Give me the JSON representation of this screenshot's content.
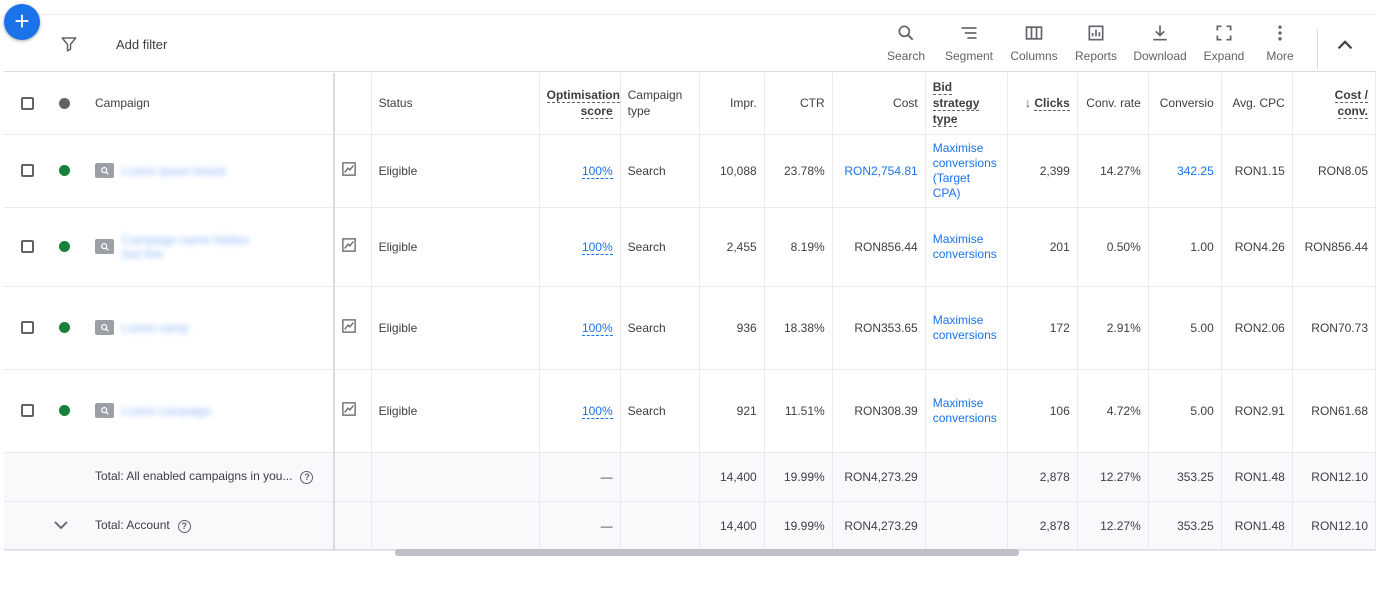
{
  "toolbar": {
    "add_filter": "Add filter",
    "tools": [
      {
        "label": "Search",
        "icon": "search-icon"
      },
      {
        "label": "Segment",
        "icon": "segment-icon"
      },
      {
        "label": "Columns",
        "icon": "columns-icon"
      },
      {
        "label": "Reports",
        "icon": "reports-icon"
      },
      {
        "label": "Download",
        "icon": "download-icon"
      },
      {
        "label": "Expand",
        "icon": "expand-icon"
      },
      {
        "label": "More",
        "icon": "more-vert-icon"
      }
    ]
  },
  "table": {
    "headers": {
      "campaign": "Campaign",
      "status": "Status",
      "opt_score_1": "Optimisation",
      "opt_score_2": "score",
      "campaign_type_1": "Campaign",
      "campaign_type_2": "type",
      "impr": "Impr.",
      "ctr": "CTR",
      "cost": "Cost",
      "bid_strategy_1": "Bid strategy",
      "bid_strategy_2": "type",
      "clicks": "Clicks",
      "conv_rate": "Conv. rate",
      "conversions": "Conversio",
      "avg_cpc": "Avg. CPC",
      "cost_conv_1": "Cost /",
      "cost_conv_2": "conv."
    },
    "rows": [
      {
        "name": "Lorem ipsum brand",
        "status": "Eligible",
        "opt_score": "100%",
        "type": "Search",
        "impr": "10,088",
        "ctr": "23.78%",
        "cost": "RON2,754.81",
        "bid_1": "Maximise",
        "bid_2": "conversions",
        "bid_3": "(Target CPA)",
        "clicks": "2,399",
        "conv_rate": "14.27%",
        "conversions": "342.25",
        "avg_cpc": "RON1.15",
        "cost_conv": "RON8.05"
      },
      {
        "name": "Campaign name hidden text line",
        "status": "Eligible",
        "opt_score": "100%",
        "type": "Search",
        "impr": "2,455",
        "ctr": "8.19%",
        "cost": "RON856.44",
        "bid_1": "Maximise",
        "bid_2": "conversions",
        "clicks": "201",
        "conv_rate": "0.50%",
        "conversions": "1.00",
        "avg_cpc": "RON4.26",
        "cost_conv": "RON856.44"
      },
      {
        "name": "Lorem camp",
        "status": "Eligible",
        "opt_score": "100%",
        "type": "Search",
        "impr": "936",
        "ctr": "18.38%",
        "cost": "RON353.65",
        "bid_1": "Maximise",
        "bid_2": "conversions",
        "clicks": "172",
        "conv_rate": "2.91%",
        "conversions": "5.00",
        "avg_cpc": "RON2.06",
        "cost_conv": "RON70.73"
      },
      {
        "name": "Lorem campaign",
        "status": "Eligible",
        "opt_score": "100%",
        "type": "Search",
        "impr": "921",
        "ctr": "11.51%",
        "cost": "RON308.39",
        "bid_1": "Maximise",
        "bid_2": "conversions",
        "clicks": "106",
        "conv_rate": "4.72%",
        "conversions": "5.00",
        "avg_cpc": "RON2.91",
        "cost_conv": "RON61.68"
      }
    ],
    "totals": [
      {
        "label": "Total: All enabled campaigns in you...",
        "opt_score": "—",
        "impr": "14,400",
        "ctr": "19.99%",
        "cost": "RON4,273.29",
        "clicks": "2,878",
        "conv_rate": "12.27%",
        "conversions": "353.25",
        "avg_cpc": "RON1.48",
        "cost_conv": "RON12.10"
      },
      {
        "label": "Total: Account",
        "opt_score": "—",
        "impr": "14,400",
        "ctr": "19.99%",
        "cost": "RON4,273.29",
        "clicks": "2,878",
        "conv_rate": "12.27%",
        "conversions": "353.25",
        "avg_cpc": "RON1.48",
        "cost_conv": "RON12.10"
      }
    ]
  }
}
